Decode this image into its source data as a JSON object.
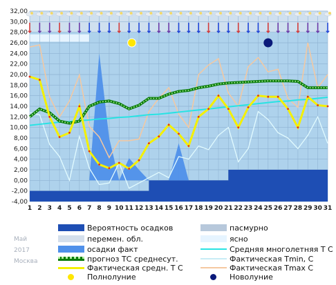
{
  "side": {
    "month": "Май",
    "year": "2017",
    "city": "Москва"
  },
  "legend": {
    "precip_prob": "Вероятность осадков",
    "overcast": "пасмурно",
    "variable": "перемен. обл.",
    "clear": "ясно",
    "precip_fact": "осадки факт",
    "avg_longterm": "Средняя многолетняя Т С",
    "forecast_avg": "прогноз ТС среднесут.",
    "fact_tmin": "Фактическая Tmin, С",
    "fact_avg": "Фактическая средн. Т С",
    "fact_tmax": "Фактическая Tmax С",
    "full_moon": "Полнолуние",
    "new_moon": "Новолуние"
  },
  "colors": {
    "plot_bg": "#aed2ec",
    "precip_prob": "#1e4eb4",
    "precip_fact": "#4f90ea",
    "avg_longterm": "#27e3e3",
    "forecast": "#0b7d0b",
    "forecast_dots": "#b6f0a4",
    "fact_avg": "#f4f000",
    "fact_tmax": "#f5c8a0",
    "fact_tmin": "#e2fbff",
    "full_moon": "#ffe600",
    "new_moon": "#0b1a7a"
  },
  "chart_data": {
    "type": "line",
    "x": [
      1,
      2,
      3,
      4,
      5,
      6,
      7,
      8,
      9,
      10,
      11,
      12,
      13,
      14,
      15,
      16,
      17,
      18,
      19,
      20,
      21,
      22,
      23,
      24,
      25,
      26,
      27,
      28,
      29,
      30,
      31
    ],
    "xlim": [
      1,
      31
    ],
    "ylim": [
      -4,
      32
    ],
    "yticks": [
      "-4,00",
      "-2,00",
      "0,00",
      "2,00",
      "4,00",
      "6,00",
      "8,00",
      "10,00",
      "12,00",
      "14,00",
      "16,00",
      "18,00",
      "20,00",
      "22,00",
      "24,00",
      "26,00",
      "28,00",
      "30,00",
      "32,00"
    ],
    "xticks": [
      "1",
      "2",
      "3",
      "4",
      "5",
      "6",
      "7",
      "8",
      "9",
      "10",
      "11",
      "12",
      "13",
      "14",
      "15",
      "16",
      "17",
      "18",
      "19",
      "20",
      "21",
      "22",
      "23",
      "24",
      "25",
      "26",
      "27",
      "28",
      "29",
      "30",
      "31"
    ],
    "grid": true,
    "series": [
      {
        "name": "Фактическая Tmax С",
        "values": [
          25.2,
          25.6,
          15.8,
          12.0,
          15.0,
          19.9,
          10.2,
          8.2,
          4.3,
          7.5,
          7.5,
          7.8,
          13.0,
          15.5,
          17.5,
          12.5,
          10.0,
          20.0,
          21.8,
          23.0,
          16.5,
          14.0,
          21.5,
          23.2,
          20.5,
          21.0,
          15.5,
          13.8,
          26.0,
          17.5,
          20.0
        ]
      },
      {
        "name": "Фактическая Tmin, С",
        "values": [
          12.8,
          12.4,
          6.8,
          4.5,
          0.0,
          8.3,
          2.3,
          -0.8,
          -0.5,
          3.3,
          -1.5,
          -0.5,
          0.5,
          1.5,
          0.5,
          4.5,
          4.0,
          6.5,
          5.8,
          8.5,
          10.0,
          3.5,
          6.0,
          13.0,
          11.5,
          9.0,
          8.0,
          6.0,
          8.5,
          12.0,
          7.0
        ]
      },
      {
        "name": "Фактическая средн. Т С",
        "values": [
          19.6,
          19.0,
          12.0,
          8.2,
          9.0,
          14.0,
          5.5,
          3.0,
          2.3,
          3.3,
          2.2,
          3.8,
          7.0,
          8.3,
          10.5,
          8.8,
          6.5,
          12.0,
          13.5,
          16.0,
          13.5,
          10.0,
          13.8,
          16.0,
          15.8,
          15.8,
          13.5,
          10.0,
          15.8,
          14.2,
          14.0
        ]
      },
      {
        "name": "прогноз ТС среднесут.",
        "values": [
          12.0,
          13.5,
          12.8,
          11.2,
          10.8,
          11.2,
          14.0,
          14.8,
          15.0,
          14.5,
          13.5,
          14.2,
          15.5,
          15.5,
          16.3,
          16.8,
          17.0,
          17.5,
          17.8,
          18.2,
          18.4,
          18.5,
          18.6,
          18.7,
          18.8,
          18.8,
          18.8,
          18.7,
          17.5,
          17.5,
          17.5
        ]
      },
      {
        "name": "Средняя многолетняя Т С",
        "values": [
          10.4,
          10.6,
          10.8,
          11.0,
          11.1,
          11.3,
          11.4,
          11.6,
          11.7,
          11.9,
          12.0,
          12.2,
          12.4,
          12.5,
          12.7,
          12.9,
          13.1,
          13.3,
          13.5,
          13.7,
          13.9,
          14.1,
          14.3,
          14.5,
          14.7,
          14.9,
          15.0,
          15.2,
          15.3,
          15.5,
          15.7
        ]
      },
      {
        "name": "осадки факт",
        "values": [
          0,
          0,
          0,
          0,
          0,
          0,
          0,
          24.0,
          8.0,
          0,
          4.2,
          2.0,
          0,
          0,
          0,
          7.0,
          0,
          0,
          0,
          0,
          0,
          0,
          0,
          0,
          0,
          0,
          0,
          0,
          0,
          0,
          0
        ]
      },
      {
        "name": "Вероятность осадков",
        "values": [
          -2,
          -2,
          -2,
          -2,
          -2,
          -2,
          -2,
          -2,
          -2,
          -2,
          -2,
          -2,
          0,
          0,
          0,
          0,
          0,
          0,
          0,
          0,
          2,
          2,
          2,
          2,
          2,
          2,
          2,
          2,
          2,
          2,
          2
        ]
      }
    ],
    "full_moon": 11,
    "new_moon": 25
  }
}
